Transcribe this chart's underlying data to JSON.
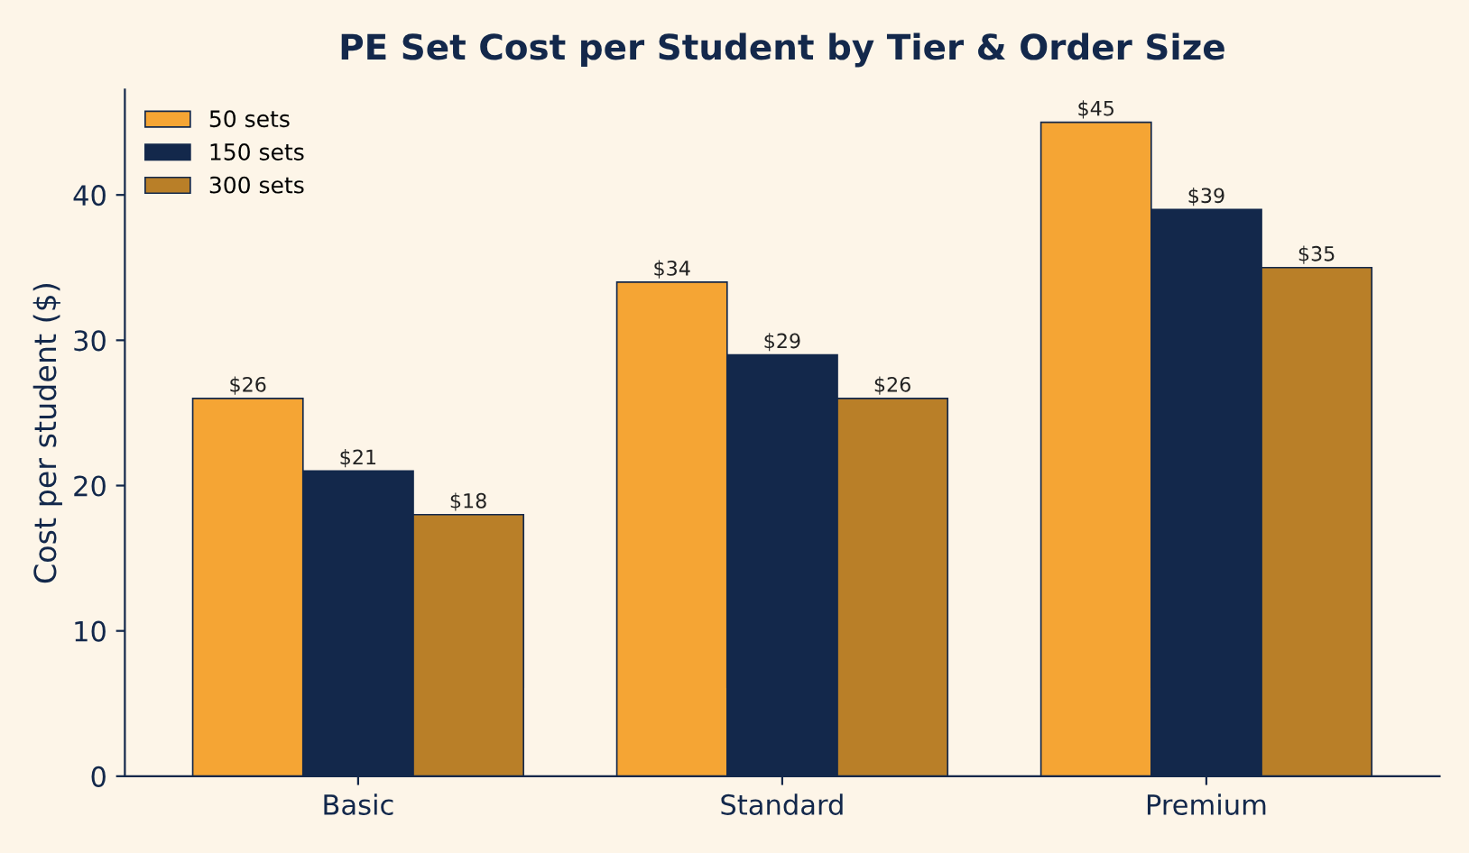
{
  "chart_data": {
    "type": "bar",
    "title": "PE Set Cost per Student by Tier & Order Size",
    "ylabel": "Cost per student ($)",
    "categories": [
      "Basic",
      "Standard",
      "Premium"
    ],
    "series": [
      {
        "name": "50 sets",
        "color": "#f5a534",
        "values": [
          26,
          34,
          45
        ],
        "value_labels": [
          "$26",
          "$34",
          "$45"
        ]
      },
      {
        "name": "150 sets",
        "color": "#13284b",
        "values": [
          21,
          29,
          39
        ],
        "value_labels": [
          "$21",
          "$29",
          "$39"
        ]
      },
      {
        "name": "300 sets",
        "color": "#b97f28",
        "values": [
          18,
          26,
          35
        ],
        "value_labels": [
          "$18",
          "$26",
          "$35"
        ]
      }
    ],
    "ylim": [
      0,
      47.25
    ],
    "yticks": [
      0,
      10,
      20,
      30,
      40
    ],
    "grid": false,
    "legend": "top left"
  }
}
